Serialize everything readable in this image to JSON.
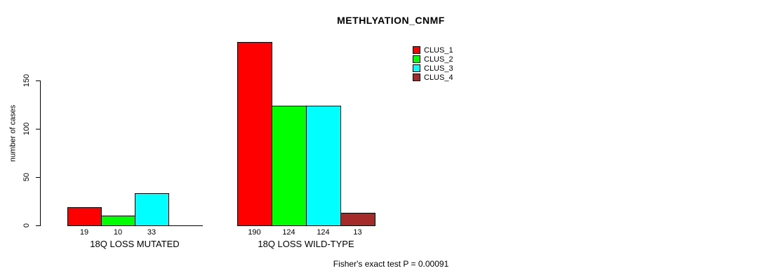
{
  "chart_data": {
    "type": "bar",
    "title": "METHLYATION_CNMF",
    "ylabel": "number of cases",
    "xlabel": "",
    "yticks": [
      0,
      50,
      100,
      150
    ],
    "axis_range": [
      0,
      150
    ],
    "grid": false,
    "legend_position": "top-right",
    "categories": [
      "18Q LOSS MUTATED",
      "18Q LOSS WILD-TYPE"
    ],
    "series": [
      {
        "name": "CLUS_1",
        "color": "#FF0000",
        "values": [
          19,
          190
        ]
      },
      {
        "name": "CLUS_2",
        "color": "#00FF00",
        "values": [
          10,
          124
        ]
      },
      {
        "name": "CLUS_3",
        "color": "#00FFFF",
        "values": [
          33,
          124
        ]
      },
      {
        "name": "CLUS_4",
        "color": "#A52A2A",
        "values": [
          0,
          13
        ]
      }
    ],
    "bar_value_labels": [
      [
        "19",
        "10",
        "33",
        ""
      ],
      [
        "190",
        "124",
        "124",
        "13"
      ]
    ],
    "annotation": "Fisher's exact test P = 0.00091",
    "colors": {
      "background": "#FFFFFF",
      "axis": "#000000",
      "text": "#000000",
      "bar_border": "#000000"
    }
  }
}
